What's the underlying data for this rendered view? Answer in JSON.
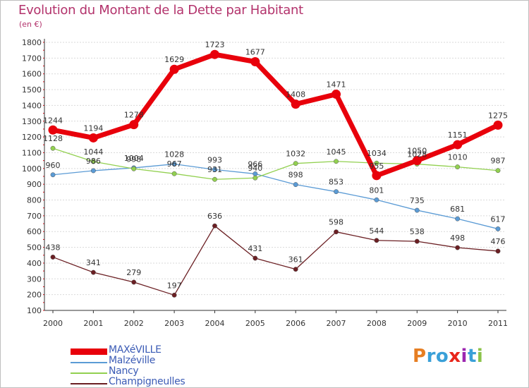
{
  "chart_data": {
    "type": "line",
    "title": "Evolution du Montant de la Dette par Habitant",
    "subtitle": "(en €)",
    "x": [
      "2000",
      "2001",
      "2002",
      "2003",
      "2004",
      "2005",
      "2006",
      "2007",
      "2008",
      "2009",
      "2010",
      "2011"
    ],
    "yticks": [
      100,
      200,
      300,
      400,
      500,
      600,
      700,
      800,
      900,
      1000,
      1100,
      1200,
      1300,
      1400,
      1500,
      1600,
      1700,
      1800
    ],
    "ylim": [
      100,
      1800
    ],
    "grid": "horizontal-dashed",
    "legend_position": "bottom-left",
    "series": [
      {
        "name": "MAXéVILLE",
        "color": "#e8000b",
        "values": [
          1244,
          1194,
          1278,
          1629,
          1723,
          1677,
          1408,
          1471,
          955,
          1050,
          1151,
          1275
        ]
      },
      {
        "name": "Malzéville",
        "color": "#5b9bd5",
        "values": [
          960,
          986,
          1004,
          1028,
          993,
          966,
          898,
          853,
          801,
          735,
          681,
          617
        ]
      },
      {
        "name": "Nancy",
        "color": "#92d050",
        "values": [
          1128,
          1044,
          998,
          967,
          931,
          940,
          1032,
          1045,
          1034,
          1028,
          1010,
          987
        ]
      },
      {
        "name": "Champigneulles",
        "color": "#6b1f23",
        "values": [
          438,
          341,
          279,
          197,
          636,
          431,
          361,
          598,
          544,
          538,
          498,
          476
        ]
      }
    ]
  },
  "logo": {
    "text": "Proxiti",
    "letters": [
      {
        "ch": "P",
        "color": "#e67e22"
      },
      {
        "ch": "r",
        "color": "#3aa0d8"
      },
      {
        "ch": "o",
        "color": "#3aa0d8"
      },
      {
        "ch": "x",
        "color": "#e8261b"
      },
      {
        "ch": "i",
        "color": "#9c27b0"
      },
      {
        "ch": "t",
        "color": "#3aa0d8"
      },
      {
        "ch": "i",
        "color": "#8bc34a"
      }
    ]
  }
}
